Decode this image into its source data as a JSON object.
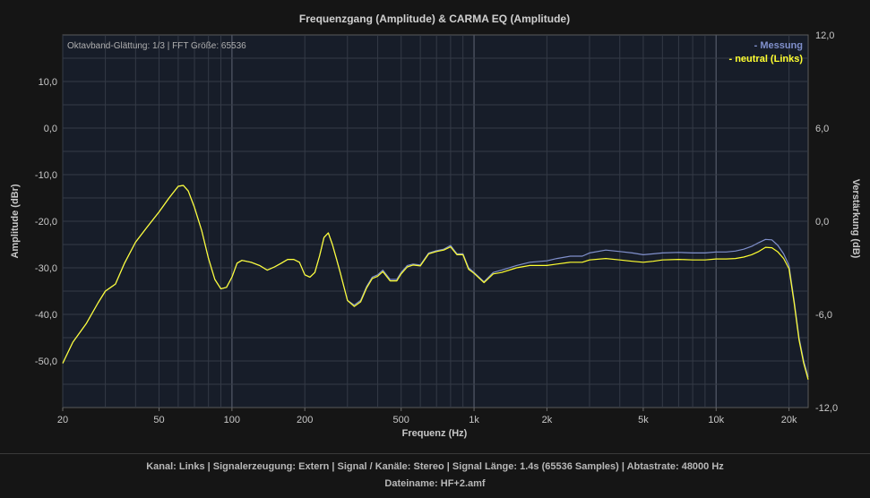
{
  "chart_data": {
    "type": "line",
    "title": "Frequenzgang (Amplitude) & CARMA EQ (Amplitude)",
    "subtitle": "Oktavband-Glättung: 1/3 | FFT Größe: 65536",
    "xlabel": "Frequenz (Hz)",
    "ylabel": "Amplitude (dBr)",
    "y2label": "Verstärkung (dB)",
    "x_scale": "log",
    "xlim": [
      20,
      24000
    ],
    "ylim": [
      -60,
      20
    ],
    "y2lim": [
      -12,
      12
    ],
    "x_ticks": [
      {
        "value": 20,
        "label": "20"
      },
      {
        "value": 50,
        "label": "50"
      },
      {
        "value": 100,
        "label": "100"
      },
      {
        "value": 200,
        "label": "200"
      },
      {
        "value": 500,
        "label": "500"
      },
      {
        "value": 1000,
        "label": "1k"
      },
      {
        "value": 2000,
        "label": "2k"
      },
      {
        "value": 5000,
        "label": "5k"
      },
      {
        "value": 10000,
        "label": "10k"
      },
      {
        "value": 20000,
        "label": "20k"
      }
    ],
    "y_ticks": [
      {
        "value": 10,
        "label": "10,0"
      },
      {
        "value": 0,
        "label": "0,0"
      },
      {
        "value": -10,
        "label": "-10,0"
      },
      {
        "value": -20,
        "label": "-20,0"
      },
      {
        "value": -30,
        "label": "-30,0"
      },
      {
        "value": -40,
        "label": "-40,0"
      },
      {
        "value": -50,
        "label": "-50,0"
      }
    ],
    "y2_ticks": [
      {
        "value": 12,
        "label": "12,0"
      },
      {
        "value": 6,
        "label": "6,0"
      },
      {
        "value": 0,
        "label": "0,0"
      },
      {
        "value": -6,
        "label": "-6,0"
      },
      {
        "value": -12,
        "label": "-12,0"
      }
    ],
    "grid": true,
    "legend_position": "top-right",
    "series": [
      {
        "name": "- Messung",
        "color": "#8090cc",
        "x": [
          20,
          22,
          25,
          28,
          30,
          33,
          36,
          40,
          45,
          50,
          55,
          60,
          63,
          66,
          70,
          75,
          80,
          85,
          90,
          95,
          100,
          105,
          110,
          120,
          130,
          140,
          150,
          160,
          170,
          180,
          190,
          200,
          210,
          220,
          230,
          240,
          250,
          260,
          270,
          280,
          300,
          320,
          340,
          360,
          380,
          400,
          420,
          450,
          480,
          500,
          530,
          560,
          600,
          650,
          700,
          750,
          800,
          850,
          900,
          950,
          1000,
          1100,
          1200,
          1300,
          1500,
          1700,
          2000,
          2200,
          2500,
          2800,
          3000,
          3500,
          4000,
          4500,
          5000,
          5500,
          6000,
          7000,
          8000,
          9000,
          10000,
          11000,
          12000,
          13000,
          14000,
          15000,
          16000,
          17000,
          18000,
          19000,
          20000,
          21000,
          22000,
          23000,
          24000
        ],
        "values": [
          -50.5,
          -46,
          -42,
          -37.5,
          -35,
          -33.5,
          -29,
          -24.5,
          -21,
          -18,
          -15,
          -12.5,
          -12.3,
          -13.5,
          -17,
          -22,
          -28,
          -32.5,
          -34.5,
          -34.2,
          -32,
          -29,
          -28.4,
          -28.8,
          -29.5,
          -30.5,
          -29.8,
          -29,
          -28.2,
          -28.2,
          -28.8,
          -31.5,
          -32,
          -31,
          -27.5,
          -23.5,
          -22.5,
          -25,
          -28,
          -31,
          -37,
          -38,
          -37,
          -34,
          -32,
          -31.5,
          -30.5,
          -32.5,
          -32.5,
          -31,
          -29.5,
          -29.2,
          -29.4,
          -26.8,
          -26.3,
          -26,
          -25.2,
          -27,
          -27,
          -30,
          -31,
          -33,
          -31,
          -30.5,
          -29.5,
          -28.8,
          -28.5,
          -28,
          -27.5,
          -27.5,
          -26.8,
          -26.2,
          -26.5,
          -26.8,
          -27.2,
          -27,
          -26.8,
          -26.7,
          -26.8,
          -26.8,
          -26.6,
          -26.6,
          -26.4,
          -26,
          -25.4,
          -24.6,
          -23.9,
          -24,
          -25.2,
          -27,
          -29.5,
          -37,
          -45,
          -50,
          -53.5
        ]
      },
      {
        "name": "- neutral (Links)",
        "color": "#ffff30",
        "x": [
          20,
          22,
          25,
          28,
          30,
          33,
          36,
          40,
          45,
          50,
          55,
          60,
          63,
          66,
          70,
          75,
          80,
          85,
          90,
          95,
          100,
          105,
          110,
          120,
          130,
          140,
          150,
          160,
          170,
          180,
          190,
          200,
          210,
          220,
          230,
          240,
          250,
          260,
          270,
          280,
          300,
          320,
          340,
          360,
          380,
          400,
          420,
          450,
          480,
          500,
          530,
          560,
          600,
          650,
          700,
          750,
          800,
          850,
          900,
          950,
          1000,
          1100,
          1200,
          1300,
          1500,
          1700,
          2000,
          2200,
          2500,
          2800,
          3000,
          3500,
          4000,
          4500,
          5000,
          5500,
          6000,
          7000,
          8000,
          9000,
          10000,
          11000,
          12000,
          13000,
          14000,
          15000,
          16000,
          17000,
          18000,
          19000,
          20000,
          21000,
          22000,
          23000,
          24000
        ],
        "values": [
          -50.5,
          -46,
          -42,
          -37.5,
          -35,
          -33.5,
          -29,
          -24.5,
          -21,
          -18,
          -15,
          -12.5,
          -12.3,
          -13.5,
          -17,
          -22,
          -28,
          -32.5,
          -34.5,
          -34.2,
          -32,
          -29,
          -28.4,
          -28.8,
          -29.5,
          -30.5,
          -29.8,
          -29,
          -28.2,
          -28.2,
          -28.8,
          -31.5,
          -32,
          -31,
          -27.5,
          -23.5,
          -22.5,
          -25,
          -28,
          -31,
          -37,
          -38.3,
          -37.3,
          -34.3,
          -32.3,
          -31.8,
          -30.8,
          -32.8,
          -32.8,
          -31.3,
          -29.8,
          -29.4,
          -29.6,
          -27,
          -26.5,
          -26.2,
          -25.5,
          -27.2,
          -27.2,
          -30.3,
          -31.2,
          -33.2,
          -31.3,
          -31,
          -30,
          -29.5,
          -29.5,
          -29.2,
          -28.8,
          -28.8,
          -28.3,
          -28,
          -28.3,
          -28.6,
          -28.8,
          -28.6,
          -28.3,
          -28.2,
          -28.3,
          -28.3,
          -28.1,
          -28.1,
          -28,
          -27.7,
          -27.2,
          -26.5,
          -25.6,
          -25.7,
          -26.6,
          -28,
          -30.2,
          -37.5,
          -45.5,
          -50.5,
          -54
        ]
      }
    ]
  },
  "footer": {
    "line1": "Kanal: Links  |  Signalerzeugung: Extern   |  Signal / Kanäle: Stereo  |  Signal Länge: 1.4s (65536 Samples)  |  Abtastrate: 48000 Hz",
    "line2": "Dateiname: HF+2.amf"
  }
}
